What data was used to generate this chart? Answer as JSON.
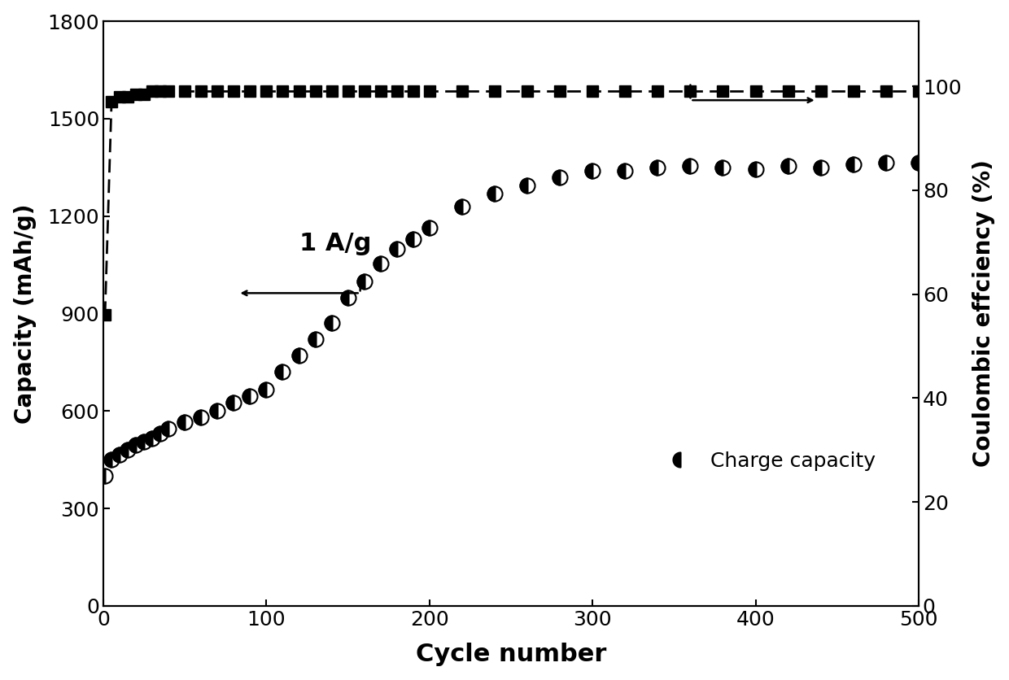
{
  "title": "",
  "xlabel": "Cycle number",
  "ylabel_left": "Capacity (mAh/g)",
  "ylabel_right": "Coulombic effciency (%)",
  "annotation": "1 A/g",
  "legend_label": "Charge capacity",
  "xlim": [
    0,
    500
  ],
  "ylim_left": [
    0,
    1800
  ],
  "ylim_right": [
    0,
    112.5
  ],
  "yticks_left": [
    0,
    300,
    600,
    900,
    1200,
    1500,
    1800
  ],
  "yticks_right": [
    0,
    20,
    40,
    60,
    80,
    100
  ],
  "xticks": [
    0,
    100,
    200,
    300,
    400,
    500
  ],
  "charge_capacity_x": [
    1,
    5,
    10,
    15,
    20,
    25,
    30,
    35,
    40,
    50,
    60,
    70,
    80,
    90,
    100,
    110,
    120,
    130,
    140,
    150,
    160,
    170,
    180,
    190,
    200,
    220,
    240,
    260,
    280,
    300,
    320,
    340,
    360,
    380,
    400,
    420,
    440,
    460,
    480,
    500
  ],
  "charge_capacity_y": [
    400,
    450,
    465,
    480,
    495,
    505,
    515,
    530,
    545,
    565,
    580,
    600,
    625,
    645,
    665,
    720,
    770,
    820,
    870,
    950,
    1000,
    1055,
    1100,
    1130,
    1165,
    1230,
    1270,
    1295,
    1320,
    1340,
    1340,
    1350,
    1355,
    1350,
    1345,
    1355,
    1350,
    1360,
    1365,
    1365
  ],
  "coulombic_x": [
    1,
    5,
    10,
    15,
    20,
    25,
    30,
    35,
    40,
    50,
    60,
    70,
    80,
    90,
    100,
    110,
    120,
    130,
    140,
    150,
    160,
    170,
    180,
    190,
    200,
    220,
    240,
    260,
    280,
    300,
    320,
    340,
    360,
    380,
    400,
    420,
    440,
    460,
    480,
    500
  ],
  "coulombic_y": [
    56,
    97,
    98,
    98,
    98.5,
    98.5,
    99,
    99,
    99,
    99,
    99,
    99,
    99,
    99,
    99,
    99,
    99,
    99,
    99,
    99,
    99,
    99,
    99,
    99,
    99,
    99,
    99,
    99,
    99,
    99,
    99,
    99,
    99,
    99,
    99,
    99,
    99,
    99,
    99,
    99
  ]
}
